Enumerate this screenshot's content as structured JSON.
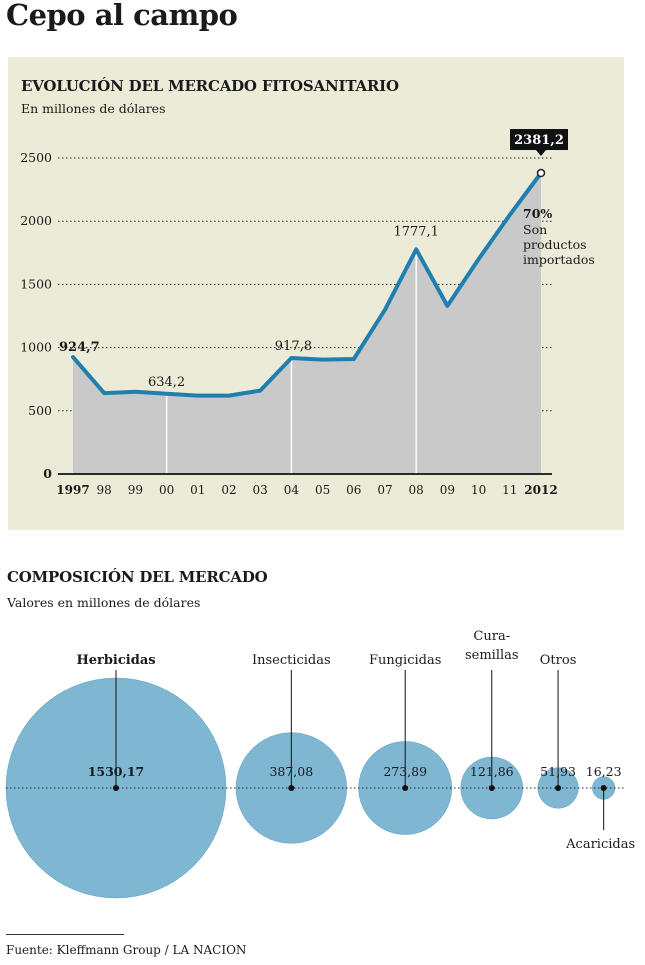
{
  "title": "Cepo al campo",
  "chart_data": [
    {
      "type": "area",
      "title": "EVOLUCIÓN DEL MERCADO FITOSANITARIO",
      "subtitle": "En millones de dólares",
      "x_tick_labels": [
        "1997",
        "98",
        "99",
        "00",
        "01",
        "02",
        "03",
        "04",
        "05",
        "06",
        "07",
        "08",
        "09",
        "10",
        "11",
        "2012"
      ],
      "x": [
        1997,
        1998,
        1999,
        2000,
        2001,
        2002,
        2003,
        2004,
        2005,
        2006,
        2007,
        2008,
        2009,
        2010,
        2011,
        2012
      ],
      "values": [
        924.7,
        640,
        650,
        634.2,
        620,
        620,
        660,
        917.8,
        905,
        910,
        1300,
        1777.1,
        1330,
        1700,
        2050,
        2381.2
      ],
      "y_ticks": [
        0,
        500,
        1000,
        1500,
        2000,
        2500
      ],
      "ylim": [
        0,
        2500
      ],
      "data_labels": [
        {
          "year": 1997,
          "text": "924,7",
          "bold": true
        },
        {
          "year": 2000,
          "text": "634,2",
          "bold": false
        },
        {
          "year": 2004,
          "text": "917,8",
          "bold": false
        },
        {
          "year": 2008,
          "text": "1777,1",
          "bold": false
        },
        {
          "year": 2012,
          "text": "2381,2",
          "bold": true,
          "boxed": true
        }
      ],
      "annotation": {
        "pct": "70%",
        "lines": [
          "Son",
          "productos",
          "importados"
        ]
      },
      "colors": {
        "area": "#c9c9c9",
        "line": "#1f7fae",
        "background": "#ecebd7"
      }
    },
    {
      "type": "bubble",
      "title": "COMPOSICIÓN DEL MERCADO",
      "subtitle": "Valores en millones de dólares",
      "items": [
        {
          "name": "Herbicidas",
          "value": 1530.17,
          "label": "1530,17",
          "bold": true,
          "name_lines": [
            "Herbicidas"
          ],
          "name_position": "above"
        },
        {
          "name": "Insecticidas",
          "value": 387.08,
          "label": "387,08",
          "bold": false,
          "name_lines": [
            "Insecticidas"
          ],
          "name_position": "above"
        },
        {
          "name": "Fungicidas",
          "value": 273.89,
          "label": "273,89",
          "bold": false,
          "name_lines": [
            "Fungicidas"
          ],
          "name_position": "above"
        },
        {
          "name": "Cura-semillas",
          "value": 121.86,
          "label": "121,86",
          "bold": false,
          "name_lines": [
            "Cura-",
            "semillas"
          ],
          "name_position": "above"
        },
        {
          "name": "Otros",
          "value": 51.93,
          "label": "51,93",
          "bold": false,
          "name_lines": [
            "Otros"
          ],
          "name_position": "above"
        },
        {
          "name": "Acaricidas",
          "value": 16.23,
          "label": "16,23",
          "bold": false,
          "name_lines": [
            "Acaricidas"
          ],
          "name_position": "below"
        }
      ],
      "colors": {
        "bubble": "#7fb6d2",
        "bubble_stroke": "#5d9fc0"
      }
    }
  ],
  "footer": "Fuente:  Kleffmann Group / LA NACION"
}
